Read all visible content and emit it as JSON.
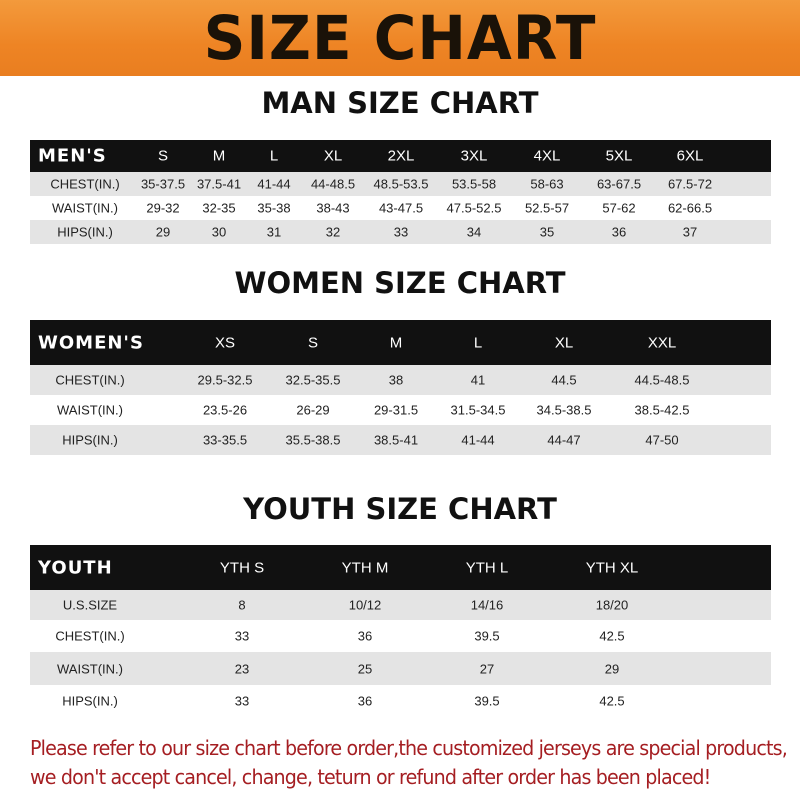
{
  "banner": {
    "title": "SIZE CHART",
    "color": "#ee8424"
  },
  "men": {
    "title": "MAN SIZE CHART",
    "header": [
      "MEN'S",
      "S",
      "M",
      "L",
      "XL",
      "2XL",
      "3XL",
      "4XL",
      "5XL",
      "6XL"
    ],
    "rows": [
      [
        "CHEST(IN.)",
        "35-37.5",
        "37.5-41",
        "41-44",
        "44-48.5",
        "48.5-53.5",
        "53.5-58",
        "58-63",
        "63-67.5",
        "67.5-72"
      ],
      [
        "WAIST(IN.)",
        "29-32",
        "32-35",
        "35-38",
        "38-43",
        "43-47.5",
        "47.5-52.5",
        "52.5-57",
        "57-62",
        "62-66.5"
      ],
      [
        "HIPS(IN.)",
        "29",
        "30",
        "31",
        "32",
        "33",
        "34",
        "35",
        "36",
        "37"
      ]
    ]
  },
  "women": {
    "title": "WOMEN SIZE CHART",
    "header": [
      "WOMEN'S",
      "XS",
      "S",
      "M",
      "L",
      "XL",
      "XXL"
    ],
    "rows": [
      [
        "CHEST(IN.)",
        "29.5-32.5",
        "32.5-35.5",
        "38",
        "41",
        "44.5",
        "44.5-48.5"
      ],
      [
        "WAIST(IN.)",
        "23.5-26",
        "26-29",
        "29-31.5",
        "31.5-34.5",
        "34.5-38.5",
        "38.5-42.5"
      ],
      [
        "HIPS(IN.)",
        "33-35.5",
        "35.5-38.5",
        "38.5-41",
        "41-44",
        "44-47",
        "47-50"
      ]
    ]
  },
  "youth": {
    "title": "YOUTH SIZE CHART",
    "header": [
      "YOUTH",
      "YTH S",
      "YTH M",
      "YTH L",
      "YTH XL"
    ],
    "rows": [
      [
        "U.S.SIZE",
        "8",
        "10/12",
        "14/16",
        "18/20"
      ],
      [
        "CHEST(IN.)",
        "33",
        "36",
        "39.5",
        "42.5"
      ],
      [
        "WAIST(IN.)",
        "23",
        "25",
        "27",
        "29"
      ],
      [
        "HIPS(IN.)",
        "33",
        "36",
        "39.5",
        "42.5"
      ]
    ]
  },
  "note": {
    "line1": "Please refer to our size chart before order,the customized jerseys are special products,",
    "line2": "we don't accept cancel, change, teturn or refund after order has been placed!",
    "color": "#a51e22"
  }
}
